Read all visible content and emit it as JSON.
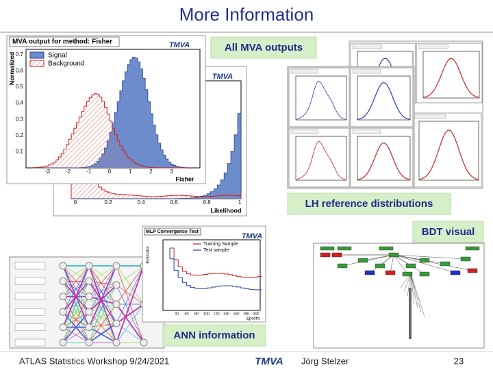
{
  "header": {
    "title": "More Information"
  },
  "callouts": {
    "mva_outputs": "All MVA outputs",
    "lh_reference": "LH reference distributions",
    "bdt_visual": "BDT visual",
    "ann_information": "ANN information"
  },
  "fisher_plot": {
    "title": "MVA output for method: Fisher",
    "logo": "TMVA",
    "legend": [
      "Signal",
      "Background"
    ],
    "y_label": "Normalized",
    "x_label": "Fisher",
    "x_ticks": [
      "-3",
      "-2",
      "-1",
      "0",
      "1",
      "2",
      "3"
    ],
    "y_ticks": [
      "0.1",
      "0.2",
      "0.3",
      "0.4",
      "0.5",
      "0.6",
      "0.7"
    ]
  },
  "likelihood_plot": {
    "logo": "TMVA",
    "x_label": "Likelihood",
    "x_ticks": [
      "0",
      "0.2",
      "0.4",
      "0.6",
      "0.8",
      "1"
    ]
  },
  "mlp_plot": {
    "title": "MLP Convergence Test",
    "logo": "TMVA",
    "legend": [
      "Training Sample",
      "Test sample"
    ],
    "x_label": "Epochs",
    "y_label": "Estimator",
    "x_ticks": [
      "40",
      "60",
      "80",
      "100",
      "120",
      "140",
      "160",
      "180",
      "200"
    ]
  },
  "footer": {
    "event": "ATLAS Statistics Workshop 9/24/2021",
    "logo": "TMVA",
    "author": "Jörg Stelzer",
    "page": "23"
  }
}
